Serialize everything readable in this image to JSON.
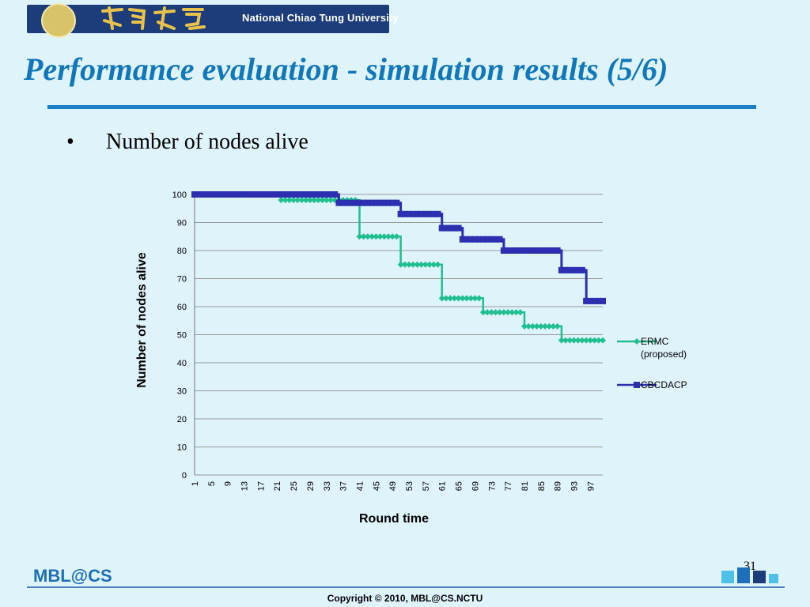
{
  "header": {
    "university_name": "National Chiao Tung University"
  },
  "slide": {
    "title": "Performance evaluation - simulation results (5/6)",
    "bullet": "Number of nodes alive"
  },
  "footer": {
    "brand": "MBL@CS",
    "page_number": "31",
    "copyright": "Copyright © 2010, MBL@CS.NCTU"
  },
  "colors": {
    "ermc": "#1fbf8f",
    "cbcdacp": "#2b2fb0"
  },
  "chart_data": {
    "type": "line",
    "title": "",
    "xlabel": "Round time",
    "ylabel": "Number of nodes alive",
    "ylim": [
      0,
      100
    ],
    "yticks": [
      0,
      10,
      20,
      30,
      40,
      50,
      60,
      70,
      80,
      90,
      100
    ],
    "x_tick_labels": [
      "1",
      "5",
      "9",
      "13",
      "17",
      "21",
      "25",
      "29",
      "33",
      "37",
      "41",
      "45",
      "49",
      "53",
      "57",
      "61",
      "65",
      "69",
      "73",
      "77",
      "81",
      "85",
      "89",
      "93",
      "97"
    ],
    "grid": true,
    "legend": "right",
    "series": [
      {
        "name": "ERMC (proposed)",
        "color": "#1fbf8f",
        "marker": "diamond",
        "steps": [
          [
            1,
            100
          ],
          [
            22,
            98
          ],
          [
            41,
            85
          ],
          [
            51,
            75
          ],
          [
            61,
            63
          ],
          [
            71,
            58
          ],
          [
            81,
            53
          ],
          [
            90,
            48
          ],
          [
            100,
            48
          ]
        ]
      },
      {
        "name": "CBCDACP",
        "color": "#2b2fb0",
        "marker": "square",
        "steps": [
          [
            1,
            100
          ],
          [
            36,
            97
          ],
          [
            51,
            93
          ],
          [
            61,
            88
          ],
          [
            66,
            84
          ],
          [
            76,
            80
          ],
          [
            90,
            73
          ],
          [
            96,
            62
          ],
          [
            100,
            62
          ]
        ]
      }
    ]
  }
}
